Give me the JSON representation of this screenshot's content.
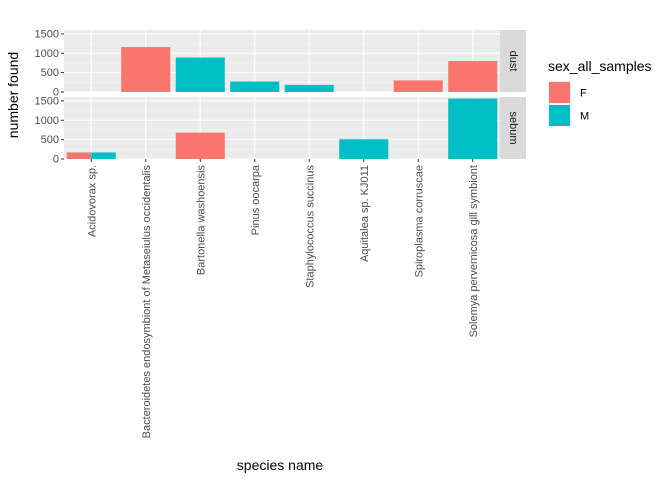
{
  "chart_data": {
    "type": "bar",
    "xlabel": "species name",
    "ylabel": "number found",
    "categories": [
      "Acidovorax sp.",
      "Bacteroidetes endosymbiont of Metaseiulus occidentalis",
      "Bartonella washoensis",
      "Pinus oocarpa",
      "Staphylococcus succinus",
      "Aquitalea sp. KJ011",
      "Spiroplasma corruscae",
      "Solemya pervernicosa gill symbiont"
    ],
    "ylim": [
      0,
      1600
    ],
    "yticks": [
      0,
      500,
      1000,
      1500
    ],
    "legend": {
      "title": "sex_all_samples",
      "position": "right",
      "entries": [
        {
          "label": "F",
          "color": "#F8766D"
        },
        {
          "label": "M",
          "color": "#00BFC4"
        }
      ]
    },
    "facets": [
      {
        "label": "dust",
        "bars": [
          {
            "category": 1,
            "group": "F",
            "value": 1160,
            "dodge": "full"
          },
          {
            "category": 2,
            "group": "M",
            "value": 890,
            "dodge": "full"
          },
          {
            "category": 3,
            "group": "M",
            "value": 270,
            "dodge": "full"
          },
          {
            "category": 4,
            "group": "M",
            "value": 185,
            "dodge": "full"
          },
          {
            "category": 6,
            "group": "F",
            "value": 300,
            "dodge": "full"
          },
          {
            "category": 7,
            "group": "F",
            "value": 800,
            "dodge": "full"
          }
        ]
      },
      {
        "label": "sebum",
        "bars": [
          {
            "category": 0,
            "group": "F",
            "value": 170,
            "dodge": "left"
          },
          {
            "category": 0,
            "group": "M",
            "value": 170,
            "dodge": "right"
          },
          {
            "category": 2,
            "group": "F",
            "value": 680,
            "dodge": "full"
          },
          {
            "category": 5,
            "group": "M",
            "value": 510,
            "dodge": "full"
          },
          {
            "category": 7,
            "group": "M",
            "value": 1560,
            "dodge": "full"
          }
        ]
      }
    ]
  }
}
